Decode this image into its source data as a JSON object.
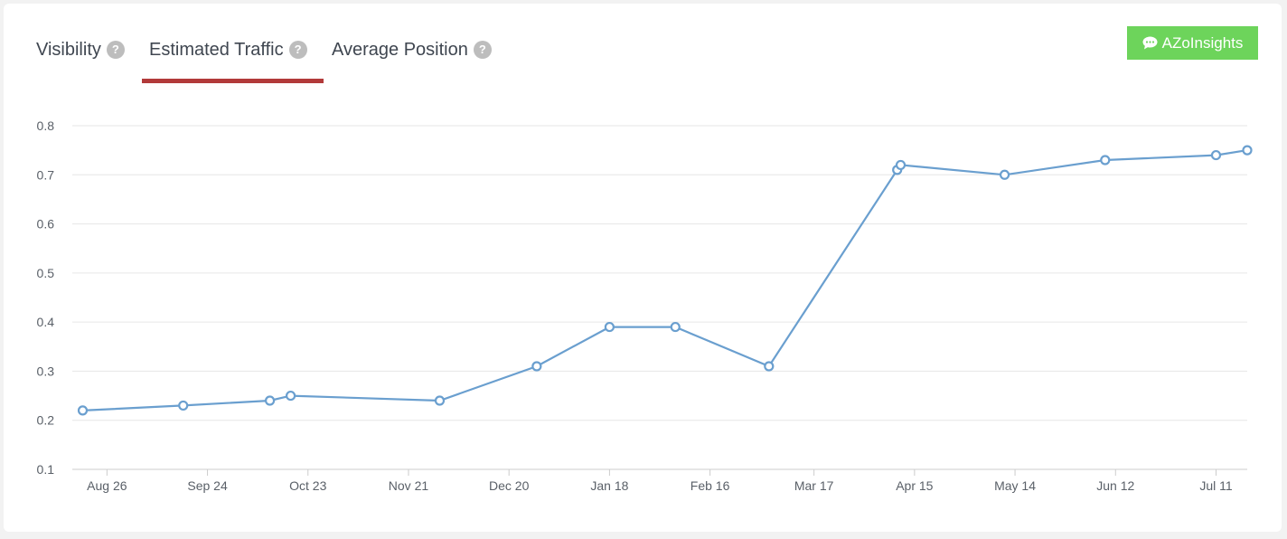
{
  "tabs": [
    {
      "label": "Visibility",
      "help": "?"
    },
    {
      "label": "Estimated Traffic",
      "help": "?",
      "active": true
    },
    {
      "label": "Average Position",
      "help": "?"
    }
  ],
  "brand_button": {
    "label": "AZoInsights",
    "icon": "chat-bubble-icon"
  },
  "colors": {
    "line": "#6a9fcf",
    "active_tab": "#b23a3a",
    "brand": "#6dd45b"
  },
  "chart_data": {
    "type": "line",
    "ylim": [
      0.1,
      0.8
    ],
    "yticks": [
      0.1,
      0.2,
      0.3,
      0.4,
      0.5,
      0.6,
      0.7,
      0.8
    ],
    "xlim": [
      "2023-08-16",
      "2024-07-20"
    ],
    "xticks": [
      {
        "date": "2023-08-26",
        "label": "Aug 26"
      },
      {
        "date": "2023-09-24",
        "label": "Sep 24"
      },
      {
        "date": "2023-10-23",
        "label": "Oct 23"
      },
      {
        "date": "2023-11-21",
        "label": "Nov 21"
      },
      {
        "date": "2023-12-20",
        "label": "Dec 20"
      },
      {
        "date": "2024-01-18",
        "label": "Jan 18"
      },
      {
        "date": "2024-02-16",
        "label": "Feb 16"
      },
      {
        "date": "2024-03-17",
        "label": "Mar 17"
      },
      {
        "date": "2024-04-15",
        "label": "Apr 15"
      },
      {
        "date": "2024-05-14",
        "label": "May 14"
      },
      {
        "date": "2024-06-12",
        "label": "Jun 12"
      },
      {
        "date": "2024-07-11",
        "label": "Jul 11"
      }
    ],
    "grid": true,
    "series": [
      {
        "points": [
          {
            "x": "2023-08-19",
            "y": 0.22
          },
          {
            "x": "2023-09-17",
            "y": 0.23
          },
          {
            "x": "2023-10-12",
            "y": 0.24
          },
          {
            "x": "2023-10-18",
            "y": 0.25
          },
          {
            "x": "2023-11-30",
            "y": 0.24
          },
          {
            "x": "2023-12-28",
            "y": 0.31
          },
          {
            "x": "2024-01-18",
            "y": 0.39
          },
          {
            "x": "2024-02-06",
            "y": 0.39
          },
          {
            "x": "2024-03-04",
            "y": 0.31
          },
          {
            "x": "2024-04-10",
            "y": 0.71
          },
          {
            "x": "2024-04-11",
            "y": 0.72
          },
          {
            "x": "2024-05-11",
            "y": 0.7
          },
          {
            "x": "2024-06-09",
            "y": 0.73
          },
          {
            "x": "2024-07-11",
            "y": 0.74
          },
          {
            "x": "2024-07-20",
            "y": 0.75
          }
        ]
      }
    ]
  }
}
